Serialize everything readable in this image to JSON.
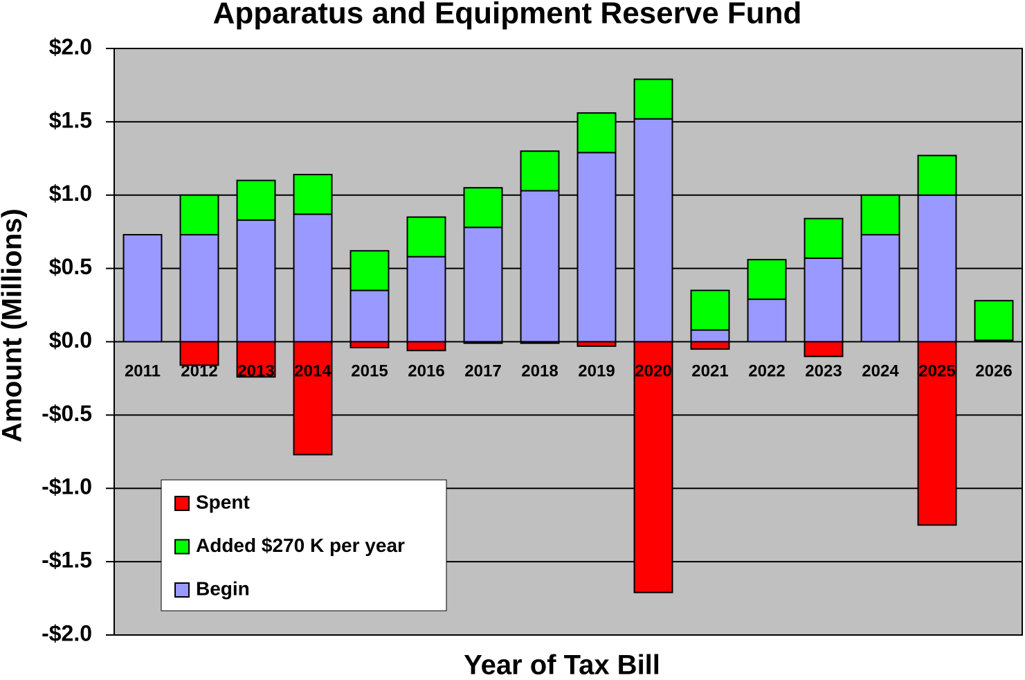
{
  "chart_data": {
    "type": "stacked-bar",
    "title": "Apparatus and Equipment Reserve Fund",
    "x_label": "Year of Tax Bill",
    "y_label": "Amount (Millions)",
    "categories": [
      "2011",
      "2012",
      "2013",
      "2014",
      "2015",
      "2016",
      "2017",
      "2018",
      "2019",
      "2020",
      "2021",
      "2022",
      "2023",
      "2024",
      "2025",
      "2026"
    ],
    "series": [
      {
        "name": "Begin",
        "color": "#9999ff",
        "values": [
          0.73,
          0.73,
          0.83,
          0.87,
          0.35,
          0.58,
          0.78,
          1.03,
          1.29,
          1.52,
          0.08,
          0.29,
          0.57,
          0.73,
          1.0,
          0.01
        ]
      },
      {
        "name": "Added $270 K per year",
        "color": "#00ff00",
        "values": [
          0,
          0.27,
          0.27,
          0.27,
          0.27,
          0.27,
          0.27,
          0.27,
          0.27,
          0.27,
          0.27,
          0.27,
          0.27,
          0.27,
          0.27,
          0.27
        ]
      },
      {
        "name": "Spent",
        "color": "#ff0000",
        "values": [
          0,
          -0.16,
          -0.24,
          -0.77,
          -0.04,
          -0.06,
          -0.01,
          -0.01,
          -0.03,
          -1.71,
          -0.05,
          0,
          -0.1,
          0,
          -1.25,
          0
        ]
      }
    ],
    "ylim": [
      -2.0,
      2.0
    ],
    "yticks": [
      {
        "value": 2.0,
        "label": "$2.0"
      },
      {
        "value": 1.5,
        "label": "$1.5"
      },
      {
        "value": 1.0,
        "label": "$1.0"
      },
      {
        "value": 0.5,
        "label": "$0.5"
      },
      {
        "value": 0,
        "label": "$0.0"
      },
      {
        "value": -0.5,
        "label": "-$0.5"
      },
      {
        "value": -1.0,
        "label": "-$1.0"
      },
      {
        "value": -1.5,
        "label": "-$1.5"
      },
      {
        "value": -2.0,
        "label": "-$2.0"
      }
    ],
    "grid": true,
    "legend": "lower-left"
  }
}
